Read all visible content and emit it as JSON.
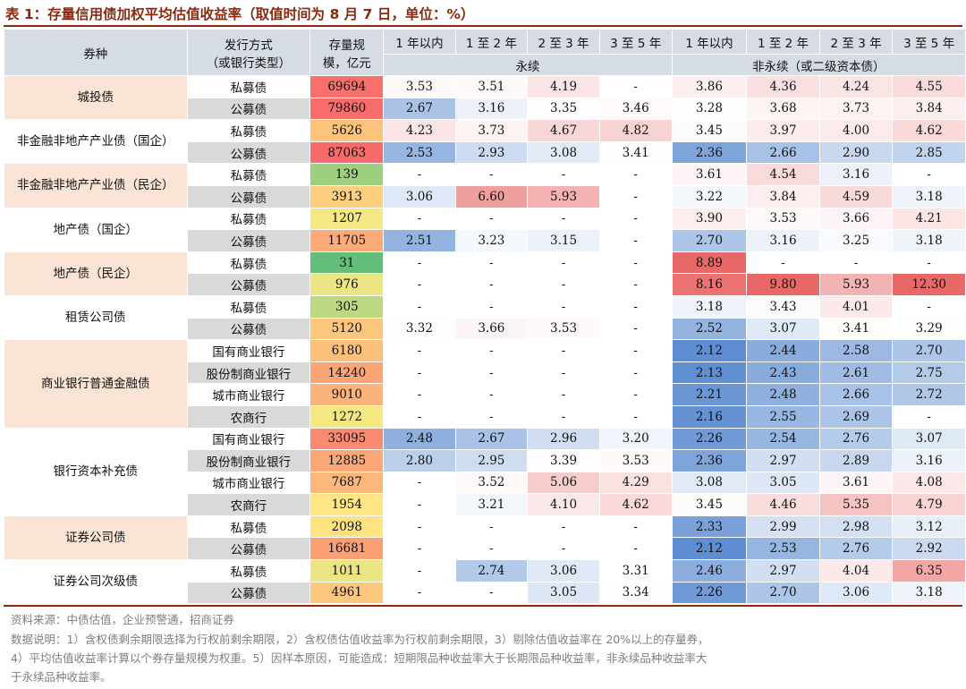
{
  "title": "表 1：存量信用债加权平均估值收益率（取值时间为 8 月 7 日，单位：%）",
  "header": {
    "category": "券种",
    "issue_line1": "发行方式",
    "issue_line2": "（或银行类型）",
    "amount_line1": "存量规",
    "amount_line2": "模，亿元",
    "term_labels": [
      "1 年以内",
      "1 至 2 年",
      "2 至 3 年",
      "3 至 5 年",
      "1 年以内",
      "1 至 2 年",
      "2 至 3 年",
      "3 至 5 年"
    ],
    "group_perpetual": "永续",
    "group_nonperpetual": "非永续（或二级资本债）"
  },
  "groups": [
    {
      "name": "城投债",
      "rows": [
        {
          "type": "私募债",
          "amount": "69694",
          "values": [
            "3.53",
            "3.51",
            "4.19",
            "-",
            "3.86",
            "4.36",
            "4.24",
            "4.55"
          ]
        },
        {
          "type": "公募债",
          "amount": "79860",
          "values": [
            "2.67",
            "3.16",
            "3.35",
            "3.46",
            "3.28",
            "3.68",
            "3.73",
            "3.84"
          ]
        }
      ]
    },
    {
      "name": "非金融非地产产业债（国企）",
      "rows": [
        {
          "type": "私募债",
          "amount": "5626",
          "values": [
            "4.23",
            "3.73",
            "4.67",
            "4.82",
            "3.45",
            "3.97",
            "4.00",
            "4.62"
          ]
        },
        {
          "type": "公募债",
          "amount": "87063",
          "values": [
            "2.53",
            "2.93",
            "3.08",
            "3.41",
            "2.36",
            "2.66",
            "2.90",
            "2.85"
          ]
        }
      ]
    },
    {
      "name": "非金融非地产产业债（民企）",
      "rows": [
        {
          "type": "私募债",
          "amount": "139",
          "values": [
            "-",
            "-",
            "-",
            "-",
            "3.61",
            "4.54",
            "3.16",
            "-"
          ]
        },
        {
          "type": "公募债",
          "amount": "3913",
          "values": [
            "3.06",
            "6.60",
            "5.93",
            "-",
            "3.22",
            "3.84",
            "4.59",
            "3.18"
          ]
        }
      ]
    },
    {
      "name": "地产债（国企）",
      "rows": [
        {
          "type": "私募债",
          "amount": "1207",
          "values": [
            "-",
            "-",
            "-",
            "-",
            "3.90",
            "3.53",
            "3.66",
            "4.21"
          ]
        },
        {
          "type": "公募债",
          "amount": "11705",
          "values": [
            "2.51",
            "3.23",
            "3.15",
            "-",
            "2.70",
            "3.16",
            "3.25",
            "3.18"
          ]
        }
      ]
    },
    {
      "name": "地产债（民企）",
      "rows": [
        {
          "type": "私募债",
          "amount": "31",
          "values": [
            "-",
            "-",
            "-",
            "-",
            "8.89",
            "-",
            "-",
            "-"
          ]
        },
        {
          "type": "公募债",
          "amount": "976",
          "values": [
            "-",
            "-",
            "-",
            "-",
            "8.16",
            "9.80",
            "5.93",
            "12.30"
          ]
        }
      ]
    },
    {
      "name": "租赁公司债",
      "rows": [
        {
          "type": "私募债",
          "amount": "305",
          "values": [
            "-",
            "-",
            "-",
            "-",
            "3.18",
            "3.43",
            "4.01",
            "-"
          ]
        },
        {
          "type": "公募债",
          "amount": "5120",
          "values": [
            "3.32",
            "3.66",
            "3.53",
            "-",
            "2.52",
            "3.07",
            "3.41",
            "3.29"
          ]
        }
      ]
    },
    {
      "name": "商业银行普通金融债",
      "rows": [
        {
          "type": "国有商业银行",
          "amount": "6180",
          "values": [
            "-",
            "-",
            "-",
            "-",
            "2.12",
            "2.44",
            "2.58",
            "2.70"
          ]
        },
        {
          "type": "股份制商业银行",
          "amount": "14240",
          "values": [
            "-",
            "-",
            "-",
            "-",
            "2.13",
            "2.43",
            "2.61",
            "2.75"
          ]
        },
        {
          "type": "城市商业银行",
          "amount": "9010",
          "values": [
            "-",
            "-",
            "-",
            "-",
            "2.21",
            "2.48",
            "2.66",
            "2.72"
          ]
        },
        {
          "type": "农商行",
          "amount": "1272",
          "values": [
            "-",
            "-",
            "-",
            "-",
            "2.16",
            "2.55",
            "2.69",
            "-"
          ]
        }
      ]
    },
    {
      "name": "银行资本补充债",
      "rows": [
        {
          "type": "国有商业银行",
          "amount": "33095",
          "values": [
            "2.48",
            "2.67",
            "2.96",
            "3.20",
            "2.26",
            "2.54",
            "2.76",
            "3.07"
          ]
        },
        {
          "type": "股份制商业银行",
          "amount": "12885",
          "values": [
            "2.80",
            "2.95",
            "3.39",
            "3.53",
            "2.36",
            "2.97",
            "2.89",
            "3.16"
          ]
        },
        {
          "type": "城市商业银行",
          "amount": "7687",
          "values": [
            "-",
            "3.52",
            "5.06",
            "4.29",
            "3.08",
            "3.05",
            "3.61",
            "4.08"
          ]
        },
        {
          "type": "农商行",
          "amount": "1954",
          "values": [
            "-",
            "3.21",
            "4.10",
            "4.62",
            "3.45",
            "4.46",
            "5.35",
            "4.79"
          ]
        }
      ]
    },
    {
      "name": "证券公司债",
      "rows": [
        {
          "type": "私募债",
          "amount": "2098",
          "values": [
            "-",
            "-",
            "-",
            "-",
            "2.33",
            "2.99",
            "2.98",
            "3.12"
          ]
        },
        {
          "type": "公募债",
          "amount": "16681",
          "values": [
            "-",
            "-",
            "-",
            "-",
            "2.12",
            "2.53",
            "2.76",
            "2.92"
          ]
        }
      ]
    },
    {
      "name": "证券公司次级债",
      "rows": [
        {
          "type": "私募债",
          "amount": "1011",
          "values": [
            "-",
            "2.74",
            "3.06",
            "3.31",
            "2.46",
            "2.97",
            "4.04",
            "6.35"
          ]
        },
        {
          "type": "公募债",
          "amount": "4961",
          "values": [
            "-",
            "-",
            "3.05",
            "3.34",
            "2.26",
            "2.70",
            "3.06",
            "3.18"
          ]
        }
      ]
    }
  ],
  "footer": {
    "source": "资料来源：中债估值，企业预警通，招商证券",
    "note_line1": "数据说明：1）含权债剩余期限选择为行权前剩余期限，2）含权债估值收益率为行权前剩余期限，3）剔除估值收益率在 20%以上的存量券，",
    "note_line2": "4）平均估值收益率计算以个券存量规模为权重。5）因样本原因，可能造成：短期限品种收益率大于长期限品种收益率，非永续品种收益率大",
    "note_line3": "于永续品种收益率。"
  },
  "colors": {
    "title": "#8B2A0E",
    "header_bg": "#d6dce4",
    "category_bg": "#fbe4d5",
    "alt_type_bg": "#d9d9d9",
    "low": "#5b8bd0",
    "mid": "#ffffff",
    "high": "#e86868",
    "amount_high": "#f8696b",
    "amount_mid": "#ffeb84",
    "amount_low": "#63be7b"
  }
}
